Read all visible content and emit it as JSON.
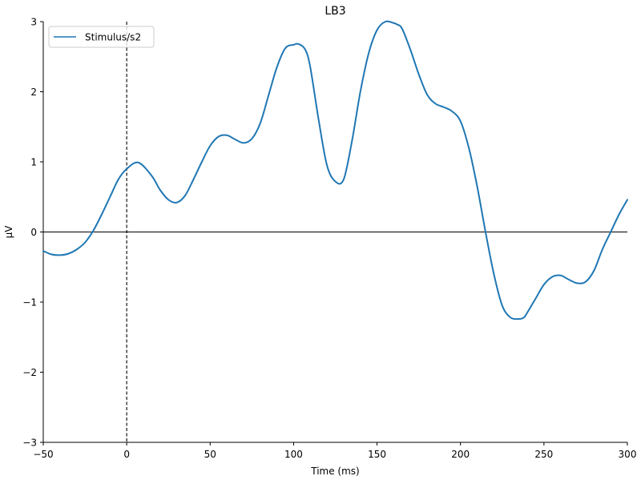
{
  "chart_data": {
    "type": "line",
    "title": "LB3",
    "xlabel": "Time (ms)",
    "ylabel": "µV",
    "xlim": [
      -50,
      300
    ],
    "ylim": [
      -3,
      3
    ],
    "x_ticks": [
      -50,
      0,
      50,
      100,
      150,
      200,
      250,
      300
    ],
    "y_ticks": [
      -3,
      -2,
      -1,
      0,
      1,
      2,
      3
    ],
    "x_tick_labels": [
      "−50",
      "0",
      "50",
      "100",
      "150",
      "200",
      "250",
      "300"
    ],
    "y_tick_labels": [
      "−3",
      "−2",
      "−1",
      "0",
      "1",
      "2",
      "3"
    ],
    "grid": false,
    "legend_position": "top-left",
    "zero_line": true,
    "stimulus_onset_line_x": 0,
    "series": [
      {
        "name": "Stimulus/s2",
        "color": "#1f77b4",
        "x": [
          -50,
          -45,
          -40,
          -35,
          -30,
          -25,
          -20,
          -15,
          -10,
          -5,
          0,
          7,
          15,
          20,
          25,
          30,
          35,
          40,
          45,
          50,
          55,
          60,
          65,
          70,
          75,
          80,
          85,
          90,
          95,
          100,
          103,
          107,
          110,
          115,
          120,
          125,
          130,
          135,
          140,
          145,
          150,
          155,
          160,
          162,
          165,
          170,
          175,
          180,
          185,
          190,
          195,
          200,
          205,
          210,
          215,
          220,
          225,
          230,
          235,
          238,
          240,
          245,
          250,
          255,
          260,
          265,
          270,
          275,
          280,
          285,
          290,
          295,
          300
        ],
        "y": [
          -0.27,
          -0.32,
          -0.33,
          -0.31,
          -0.25,
          -0.15,
          0.02,
          0.25,
          0.5,
          0.75,
          0.9,
          0.99,
          0.8,
          0.6,
          0.46,
          0.42,
          0.52,
          0.75,
          1.0,
          1.23,
          1.36,
          1.38,
          1.32,
          1.27,
          1.33,
          1.55,
          1.95,
          2.35,
          2.62,
          2.67,
          2.68,
          2.6,
          2.35,
          1.6,
          0.95,
          0.72,
          0.75,
          1.3,
          2.0,
          2.55,
          2.88,
          3.0,
          2.98,
          2.96,
          2.9,
          2.6,
          2.25,
          1.96,
          1.83,
          1.78,
          1.72,
          1.58,
          1.2,
          0.65,
          0.0,
          -0.6,
          -1.05,
          -1.22,
          -1.24,
          -1.22,
          -1.15,
          -0.95,
          -0.75,
          -0.64,
          -0.62,
          -0.68,
          -0.73,
          -0.71,
          -0.55,
          -0.25,
          0.0,
          0.25,
          0.46
        ]
      }
    ]
  }
}
